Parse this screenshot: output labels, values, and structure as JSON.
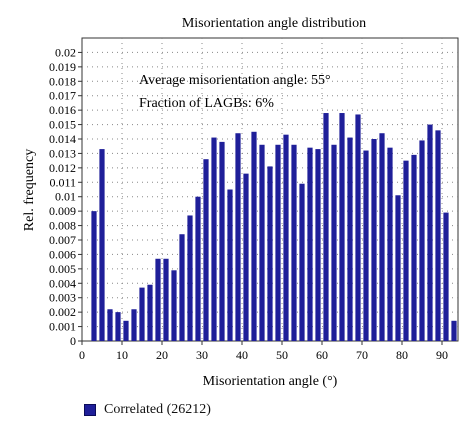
{
  "chart_data": {
    "type": "bar",
    "title": "Misorientation angle distribution",
    "xlabel": "Misorientation angle (°)",
    "ylabel": "Rel. frequency",
    "xlim": [
      0,
      94
    ],
    "ylim": [
      0,
      0.021
    ],
    "x_ticks": [
      0,
      10,
      20,
      30,
      40,
      50,
      60,
      70,
      80,
      90
    ],
    "y_ticks": [
      "0",
      "0.001",
      "0.002",
      "0.003",
      "0.004",
      "0.005",
      "0.006",
      "0.007",
      "0.008",
      "0.009",
      "0.01",
      "0.011",
      "0.012",
      "0.013",
      "0.014",
      "0.015",
      "0.016",
      "0.017",
      "0.018",
      "0.019",
      "0.02"
    ],
    "grid": true,
    "annotations": [
      "Average misorientation angle: 55°",
      "Fraction of LAGBs: 6%"
    ],
    "legend_position": "bottom-left",
    "series": [
      {
        "name": "Correlated (26212)",
        "color": "#1f1f99",
        "x": [
          3,
          5,
          7,
          9,
          11,
          13,
          15,
          17,
          19,
          21,
          23,
          25,
          27,
          29,
          31,
          33,
          35,
          37,
          39,
          41,
          43,
          45,
          47,
          49,
          51,
          53,
          55,
          57,
          59,
          61,
          63,
          65,
          67,
          69,
          71,
          73,
          75,
          77,
          79,
          81,
          83,
          85,
          87,
          89,
          91,
          93
        ],
        "values": [
          0.009,
          0.0133,
          0.0022,
          0.002,
          0.0014,
          0.0022,
          0.0037,
          0.0039,
          0.0057,
          0.0057,
          0.0049,
          0.0074,
          0.0087,
          0.01,
          0.0126,
          0.0141,
          0.0138,
          0.0105,
          0.0144,
          0.0116,
          0.0145,
          0.0136,
          0.0121,
          0.0136,
          0.0143,
          0.0136,
          0.0109,
          0.0134,
          0.0133,
          0.0158,
          0.0136,
          0.0158,
          0.0141,
          0.0157,
          0.0132,
          0.014,
          0.0144,
          0.0134,
          0.0101,
          0.0125,
          0.0129,
          0.0139,
          0.015,
          0.0146,
          0.0089,
          0.0014
        ]
      }
    ]
  }
}
